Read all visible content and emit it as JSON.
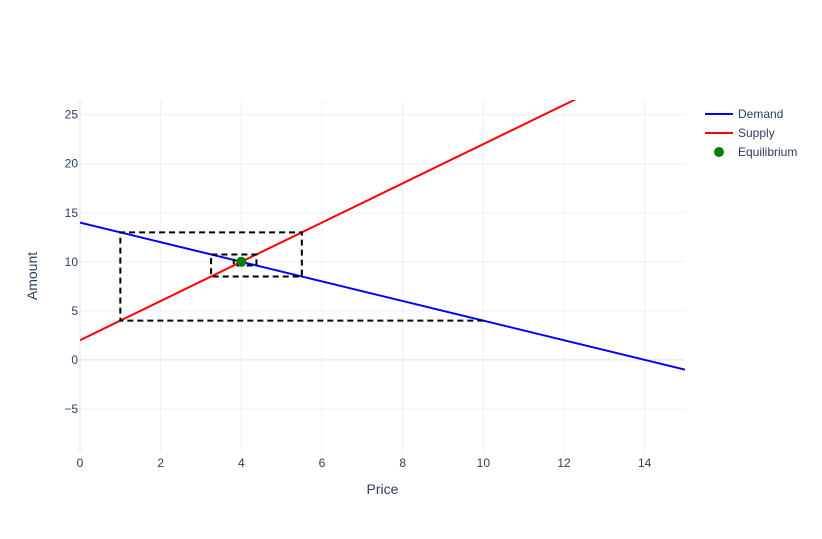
{
  "chart_data": {
    "type": "line",
    "title": "",
    "xlabel": "Price",
    "ylabel": "Amount",
    "xlim": [
      0,
      15
    ],
    "ylim": [
      -9.5,
      26.5
    ],
    "x_ticks": [
      0,
      2,
      4,
      6,
      8,
      10,
      12,
      14
    ],
    "y_ticks": [
      -5,
      0,
      5,
      10,
      15,
      20,
      25
    ],
    "grid": true,
    "legend_position": "top-right",
    "series": [
      {
        "name": "Demand",
        "kind": "line",
        "color": "#0000ff",
        "x": [
          0,
          15
        ],
        "y": [
          14,
          -1
        ]
      },
      {
        "name": "Supply",
        "kind": "line",
        "color": "#ff0000",
        "x": [
          0,
          15
        ],
        "y": [
          2,
          32
        ]
      },
      {
        "name": "Equilibrium",
        "kind": "marker",
        "color": "#008000",
        "x": [
          4
        ],
        "y": [
          10
        ]
      }
    ],
    "annotations": {
      "cobweb_path": {
        "color": "#000000",
        "style": "dashed",
        "points": [
          [
            10,
            4
          ],
          [
            1,
            4
          ],
          [
            1,
            13
          ],
          [
            5.5,
            13
          ],
          [
            5.5,
            8.5
          ],
          [
            3.25,
            8.5
          ],
          [
            3.25,
            10.75
          ],
          [
            4.375,
            10.75
          ],
          [
            4.375,
            9.625
          ],
          [
            3.8125,
            9.625
          ],
          [
            3.8125,
            10.1875
          ],
          [
            4.09375,
            10.1875
          ],
          [
            4.09375,
            9.90625
          ]
        ]
      }
    }
  }
}
